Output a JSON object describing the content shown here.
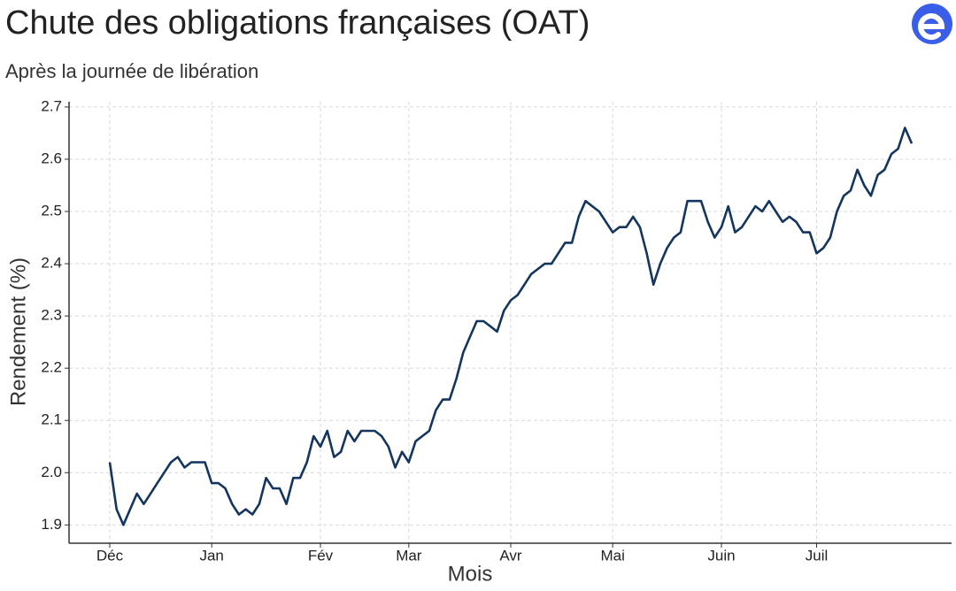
{
  "chart_data": {
    "type": "line",
    "title": "Chute des obligations françaises (OAT)",
    "subtitle": "Après la journée de libération",
    "x_label": "Mois",
    "y_label": "Rendement (%)",
    "categories": [
      "Déc",
      null,
      null,
      null,
      null,
      null,
      null,
      null,
      null,
      null,
      null,
      null,
      null,
      null,
      null,
      "Jan",
      null,
      null,
      null,
      null,
      null,
      null,
      null,
      null,
      null,
      null,
      null,
      null,
      null,
      null,
      null,
      "Fév",
      null,
      null,
      null,
      null,
      null,
      null,
      null,
      null,
      null,
      null,
      null,
      null,
      "Mar",
      null,
      null,
      null,
      null,
      null,
      null,
      null,
      null,
      null,
      null,
      null,
      null,
      null,
      null,
      "Avr",
      null,
      null,
      null,
      null,
      null,
      null,
      null,
      null,
      null,
      null,
      null,
      null,
      null,
      null,
      "Mai",
      null,
      null,
      null,
      null,
      null,
      null,
      null,
      null,
      null,
      null,
      null,
      null,
      null,
      null,
      null,
      "Juin",
      null,
      null,
      null,
      null,
      null,
      null,
      null,
      null,
      null,
      null,
      null,
      null,
      null,
      "Juil",
      null,
      null,
      null,
      null,
      null,
      null,
      null,
      null,
      null,
      null,
      null,
      null,
      null,
      null
    ],
    "series": [
      {
        "name": "OAT",
        "color": "#14355e",
        "values": [
          2.02,
          1.93,
          1.9,
          1.93,
          1.96,
          1.94,
          1.96,
          1.98,
          2.0,
          2.02,
          2.03,
          2.01,
          2.02,
          2.02,
          2.02,
          1.98,
          1.98,
          1.97,
          1.94,
          1.92,
          1.93,
          1.92,
          1.94,
          1.99,
          1.97,
          1.97,
          1.94,
          1.99,
          1.99,
          2.02,
          2.07,
          2.05,
          2.08,
          2.03,
          2.04,
          2.08,
          2.06,
          2.08,
          2.08,
          2.08,
          2.07,
          2.05,
          2.01,
          2.04,
          2.02,
          2.06,
          2.07,
          2.08,
          2.12,
          2.14,
          2.14,
          2.18,
          2.23,
          2.26,
          2.29,
          2.29,
          2.28,
          2.27,
          2.31,
          2.33,
          2.34,
          2.36,
          2.38,
          2.39,
          2.4,
          2.4,
          2.42,
          2.44,
          2.44,
          2.49,
          2.52,
          2.51,
          2.5,
          2.48,
          2.46,
          2.47,
          2.47,
          2.49,
          2.47,
          2.42,
          2.36,
          2.4,
          2.43,
          2.45,
          2.46,
          2.52,
          2.52,
          2.52,
          2.48,
          2.45,
          2.47,
          2.51,
          2.46,
          2.47,
          2.49,
          2.51,
          2.5,
          2.52,
          2.5,
          2.48,
          2.49,
          2.48,
          2.46,
          2.46,
          2.42,
          2.43,
          2.45,
          2.5,
          2.53,
          2.54,
          2.58,
          2.55,
          2.53,
          2.57,
          2.58,
          2.61,
          2.62,
          2.66,
          2.63
        ]
      }
    ],
    "ylim": [
      1.865,
      2.71
    ],
    "yticks": [
      1.9,
      {
        "value": 2,
        "label": "2.0"
      },
      2.1,
      2.2,
      2.3,
      2.4,
      2.5,
      2.6,
      2.7
    ],
    "grid": true
  }
}
